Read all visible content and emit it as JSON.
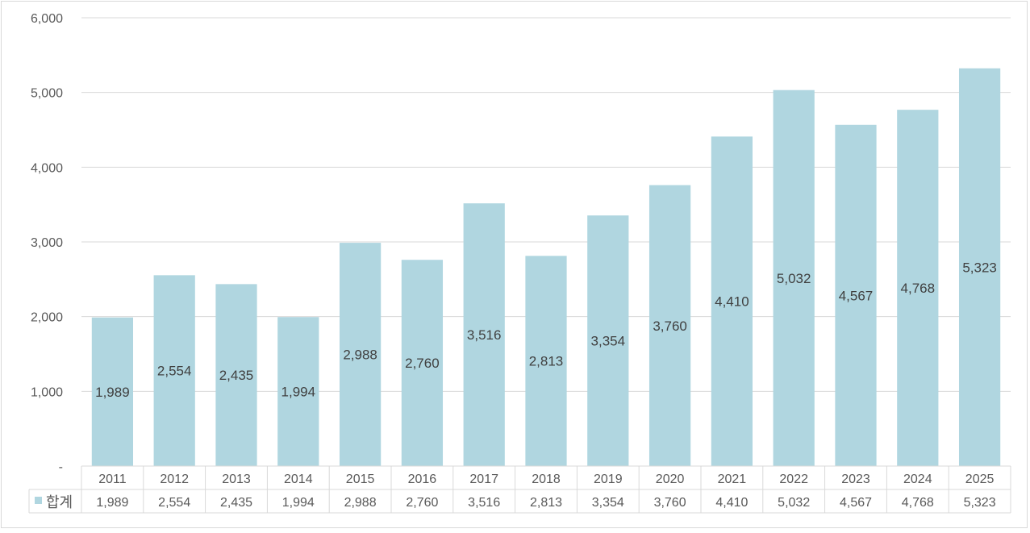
{
  "chart_data": {
    "type": "bar",
    "title": "",
    "xlabel": "",
    "ylabel": "",
    "categories": [
      "2011",
      "2012",
      "2013",
      "2014",
      "2015",
      "2016",
      "2017",
      "2018",
      "2019",
      "2020",
      "2021",
      "2022",
      "2023",
      "2024",
      "2025"
    ],
    "series": [
      {
        "name": "합계",
        "values": [
          1989,
          2554,
          2435,
          1994,
          2988,
          2760,
          3516,
          2813,
          3354,
          3760,
          4410,
          5032,
          4567,
          4768,
          5323
        ],
        "labels": [
          "1,989",
          "2,554",
          "2,435",
          "1,994",
          "2,988",
          "2,760",
          "3,516",
          "2,813",
          "3,354",
          "3,760",
          "4,410",
          "5,032",
          "4,567",
          "4,768",
          "5,323"
        ]
      }
    ],
    "ylim": [
      0,
      6000
    ],
    "yticks": [
      0,
      1000,
      2000,
      3000,
      4000,
      5000,
      6000
    ],
    "ytick_labels": [
      "-",
      "1,000",
      "2,000",
      "3,000",
      "4,000",
      "5,000",
      "6,000"
    ],
    "grid": true,
    "data_table": true,
    "colors": {
      "bar": "#b0d6e0",
      "grid": "#d9d9d9",
      "text": "#404040",
      "axis_text": "#595959"
    }
  }
}
